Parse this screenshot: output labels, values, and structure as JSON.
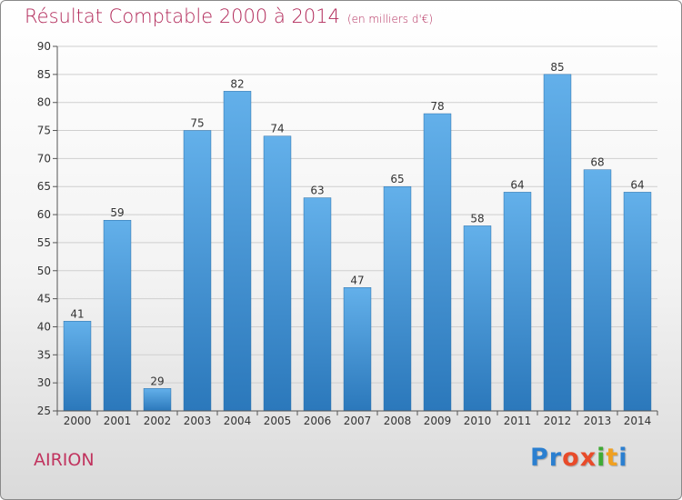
{
  "header": {
    "title": "Résultat Comptable 2000 à 2014",
    "subtitle": "(en milliers d'€)"
  },
  "footer": {
    "commune": "AIRION",
    "logo_letters": [
      "P",
      "r",
      "o",
      "x",
      "i",
      "t",
      "i"
    ],
    "logo_colors": [
      "#2b7fd0",
      "#2b7fd0",
      "#e84b2a",
      "#e84b2a",
      "#3faa35",
      "#f0a020",
      "#2b7fd0"
    ]
  },
  "colors": {
    "bar_top": "#63b0ea",
    "bar_bottom": "#2b78bb",
    "grid": "#cfcfcf",
    "axis": "#555555"
  },
  "chart_data": {
    "type": "bar",
    "title": "Résultat Comptable 2000 à 2014",
    "subtitle": "(en milliers d'€)",
    "xlabel": "",
    "ylabel": "",
    "categories": [
      "2000",
      "2001",
      "2002",
      "2003",
      "2004",
      "2005",
      "2006",
      "2007",
      "2008",
      "2009",
      "2010",
      "2011",
      "2012",
      "2013",
      "2014"
    ],
    "values": [
      41,
      59,
      29,
      75,
      82,
      74,
      63,
      47,
      65,
      78,
      58,
      64,
      85,
      68,
      64
    ],
    "ylim": [
      25,
      90
    ],
    "yticks": [
      25,
      30,
      35,
      40,
      45,
      50,
      55,
      60,
      65,
      70,
      75,
      80,
      85,
      90
    ],
    "grid": true,
    "legend": "none"
  }
}
